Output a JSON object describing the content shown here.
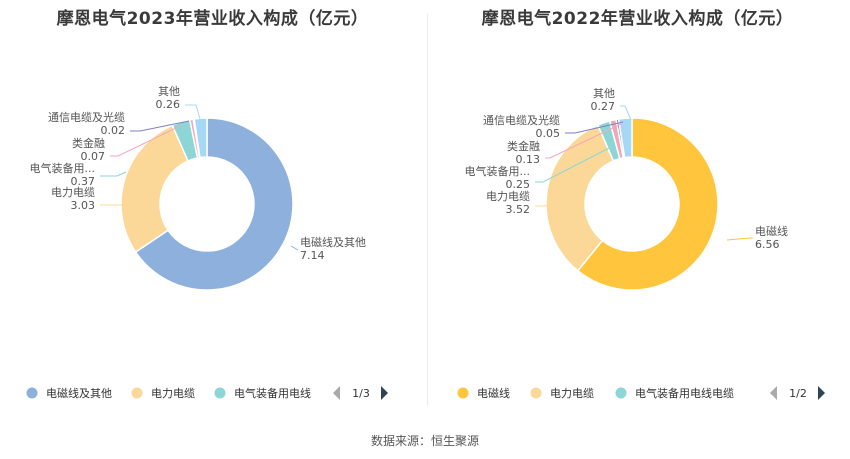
{
  "source_label": "数据来源：恒生聚源",
  "chart_data": [
    {
      "type": "pie",
      "title": "摩恩电气2023年营业收入构成（亿元）",
      "slices": [
        {
          "name": "电磁线及其他",
          "label_lines": [
            "电磁线及其他"
          ],
          "value": 7.14,
          "display": "7.14",
          "color": "#8eb0dc"
        },
        {
          "name": "电力电缆",
          "label_lines": [
            "电力电缆"
          ],
          "value": 3.03,
          "display": "3.03",
          "color": "#fcd898"
        },
        {
          "name": "电气装备用电线",
          "label_lines": [
            "电气装备用..."
          ],
          "value": 0.37,
          "display": "0.37",
          "color": "#8ed6d6"
        },
        {
          "name": "类金融",
          "label_lines": [
            "类金融"
          ],
          "value": 0.07,
          "display": "0.07",
          "color": "#f4a6b9"
        },
        {
          "name": "通信电缆及光缆",
          "label_lines": [
            "通信电缆及光缆"
          ],
          "value": 0.02,
          "display": "0.02",
          "color": "#7d7fc9"
        },
        {
          "name": "其他",
          "label_lines": [
            "其他"
          ],
          "value": 0.26,
          "display": "0.26",
          "color": "#a5d8f5"
        }
      ],
      "legend": {
        "items": [
          "电磁线及其他",
          "电力电缆",
          "电气装备用电线"
        ],
        "page": "1/3"
      }
    },
    {
      "type": "pie",
      "title": "摩恩电气2022年营业收入构成（亿元）",
      "slices": [
        {
          "name": "电磁线",
          "label_lines": [
            "电磁线"
          ],
          "value": 6.56,
          "display": "6.56",
          "color": "#ffc53d"
        },
        {
          "name": "电力电缆",
          "label_lines": [
            "电力电缆"
          ],
          "value": 3.52,
          "display": "3.52",
          "color": "#fcd898"
        },
        {
          "name": "电气装备用电线电缆",
          "label_lines": [
            "电气装备用..."
          ],
          "value": 0.25,
          "display": "0.25",
          "color": "#8ed6d6"
        },
        {
          "name": "类金融",
          "label_lines": [
            "类金融"
          ],
          "value": 0.13,
          "display": "0.13",
          "color": "#f4a6b9"
        },
        {
          "name": "通信电缆及光缆",
          "label_lines": [
            "通信电缆及光缆"
          ],
          "value": 0.05,
          "display": "0.05",
          "color": "#7d7fc9"
        },
        {
          "name": "其他",
          "label_lines": [
            "其他"
          ],
          "value": 0.27,
          "display": "0.27",
          "color": "#a5d8f5"
        }
      ],
      "legend": {
        "items": [
          "电磁线",
          "电力电缆",
          "电气装备用电线电缆"
        ],
        "page": "1/2"
      }
    }
  ]
}
